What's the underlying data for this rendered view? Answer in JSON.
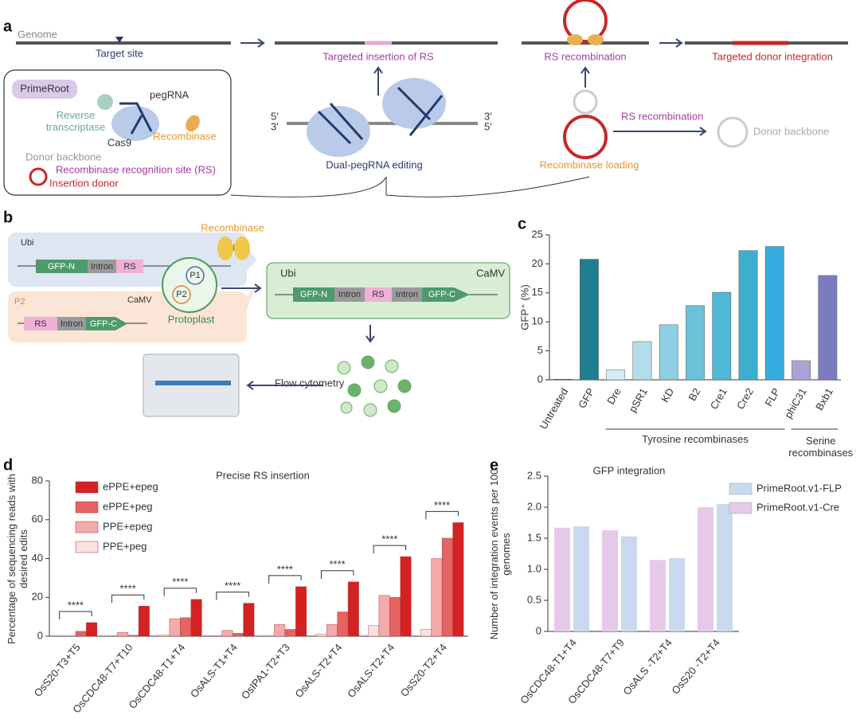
{
  "panel_a": {
    "label": "a",
    "genome": "Genome",
    "target_site": "Target site",
    "targeted_insertion": "Targeted insertion of RS",
    "rs_recombination_top": "RS recombination",
    "donor_integration": "Targeted  donor integration",
    "primeroot": "PrimeRoot",
    "pegrna": "pegRNA",
    "reverse_transcriptase": "Reverse transcriptase",
    "cas9": "Cas9",
    "recombinase": "Recombinase",
    "donor_backbone_legend": "Donor backbone",
    "rs_site": "Recombinase recognition site (RS)",
    "insertion_donor": "Insertion donor",
    "end_5_left": "5′",
    "end_3_left": "3′",
    "end_3_right": "3′",
    "end_5_right": "5′",
    "dual_pegrna": "Dual-pegRNA editing",
    "rs_recombination_side": "RS recombination",
    "donor_backbone": "Donor backbone",
    "recombinase_loading": "Recombinase loading"
  },
  "panel_b": {
    "label": "b",
    "ubi_p1": "Ubi",
    "p1": "P1",
    "gfp_n_p1": "GFP-N",
    "intron_p1": "Intron",
    "rs_p1": "RS",
    "p2": "P2",
    "camv_p2": "CaMV",
    "rs_p2": "RS",
    "intron_p2": "Intron",
    "gfp_c_p2": "GFP-C",
    "recombinase": "Recombinase",
    "cell_p1": "P1",
    "cell_p2": "P2",
    "protoplast": "Protoplast",
    "ubi_out": "Ubi",
    "camv_out": "CaMV",
    "gfp_n_out": "GFP-N",
    "intron1_out": "Intron",
    "rs_out": "RS",
    "intron2_out": "Intron",
    "gfp_c_out": "GFP-C",
    "flow_cytometry": "Flow cytometry"
  },
  "chart_data": [
    {
      "type": "bar",
      "panel_label": "c",
      "y_label": "GFP⁺ (%)",
      "categories": [
        "Untreated",
        "GFP",
        "Dre",
        "pSR1",
        "KD",
        "B2",
        "Cre1",
        "Cre2",
        "FLP",
        "phiC31",
        "Bxb1"
      ],
      "values": [
        0.1,
        20.8,
        1.7,
        6.6,
        9.5,
        12.8,
        15.1,
        22.3,
        23.0,
        3.3,
        18.0
      ],
      "colors": [
        "#555555",
        "#1f7f8f",
        "#d4edf3",
        "#b2dde9",
        "#8dcfe2",
        "#6cc2da",
        "#50b7d4",
        "#3cafd1",
        "#36ade0",
        "#aaa4d6",
        "#7b7cc0"
      ],
      "groups": [
        {
          "label": "Tyrosine recombinases",
          "categories": [
            "Dre",
            "pSR1",
            "KD",
            "B2",
            "Cre1",
            "Cre2",
            "FLP"
          ]
        },
        {
          "label": "Serine recombinases",
          "categories": [
            "phiC31",
            "Bxb1"
          ]
        }
      ],
      "ylim": [
        0,
        25
      ],
      "yticks": [
        0,
        5,
        10,
        15,
        20,
        25
      ]
    },
    {
      "type": "bar",
      "panel_label": "d",
      "title": "Precise RS insertion",
      "y_label": "Percentage of sequencing reads with desired edits",
      "categories": [
        "OsS20-T3+T5",
        "OsCDC48-T7+T10",
        "OsCDC48-T1+T4",
        "OsALS-T1+T4",
        "OsIPA1-T2+T3",
        "OsALS-T2+T4",
        "OsALS-T2+T4",
        "OsS20-T2+T4"
      ],
      "series": [
        {
          "name": "PPE+peg",
          "color": "#fbe2e2",
          "values": [
            0,
            0,
            0.5,
            0.3,
            0.2,
            1,
            5.5,
            3.5
          ]
        },
        {
          "name": "PPE+epeg",
          "color": "#f3aaaa",
          "values": [
            0,
            2,
            9,
            3,
            6,
            6,
            21,
            40
          ]
        },
        {
          "name": "ePPE+peg",
          "color": "#e56363",
          "values": [
            2.5,
            0.5,
            9.5,
            1.5,
            3.5,
            12.5,
            20,
            50.5
          ]
        },
        {
          "name": "ePPE+epeg",
          "color": "#d42222",
          "values": [
            7,
            15.5,
            19,
            17,
            25.5,
            28,
            41,
            58.5
          ]
        }
      ],
      "significance": [
        "****",
        "****",
        "****",
        "****",
        "****",
        "****",
        "****",
        "****"
      ],
      "ylim": [
        0,
        80
      ],
      "yticks": [
        0,
        20,
        40,
        60,
        80
      ]
    },
    {
      "type": "bar",
      "panel_label": "e",
      "title": "GFP integration",
      "y_label": "Number of integration events per 100 genomes",
      "categories": [
        "OsCDC48-T1+T4",
        "OsCDC48-T7+T9",
        "OsALS -T2+T4",
        "OsS20 -T2+T4"
      ],
      "series": [
        {
          "name": "PrimeRoot.v1-Cre",
          "color": "#e6c9e8",
          "values": [
            1.67,
            1.63,
            1.15,
            2.0
          ]
        },
        {
          "name": "PrimeRoot.v1-FLP",
          "color": "#c9d9ef",
          "values": [
            1.69,
            1.53,
            1.18,
            2.05
          ]
        }
      ],
      "ylim": [
        0,
        2.5
      ],
      "yticks": [
        0,
        0.5,
        {
          "value": 1,
          "label": "1.0"
        },
        1.5,
        {
          "value": 2,
          "label": "2.0"
        },
        2.5
      ]
    }
  ]
}
